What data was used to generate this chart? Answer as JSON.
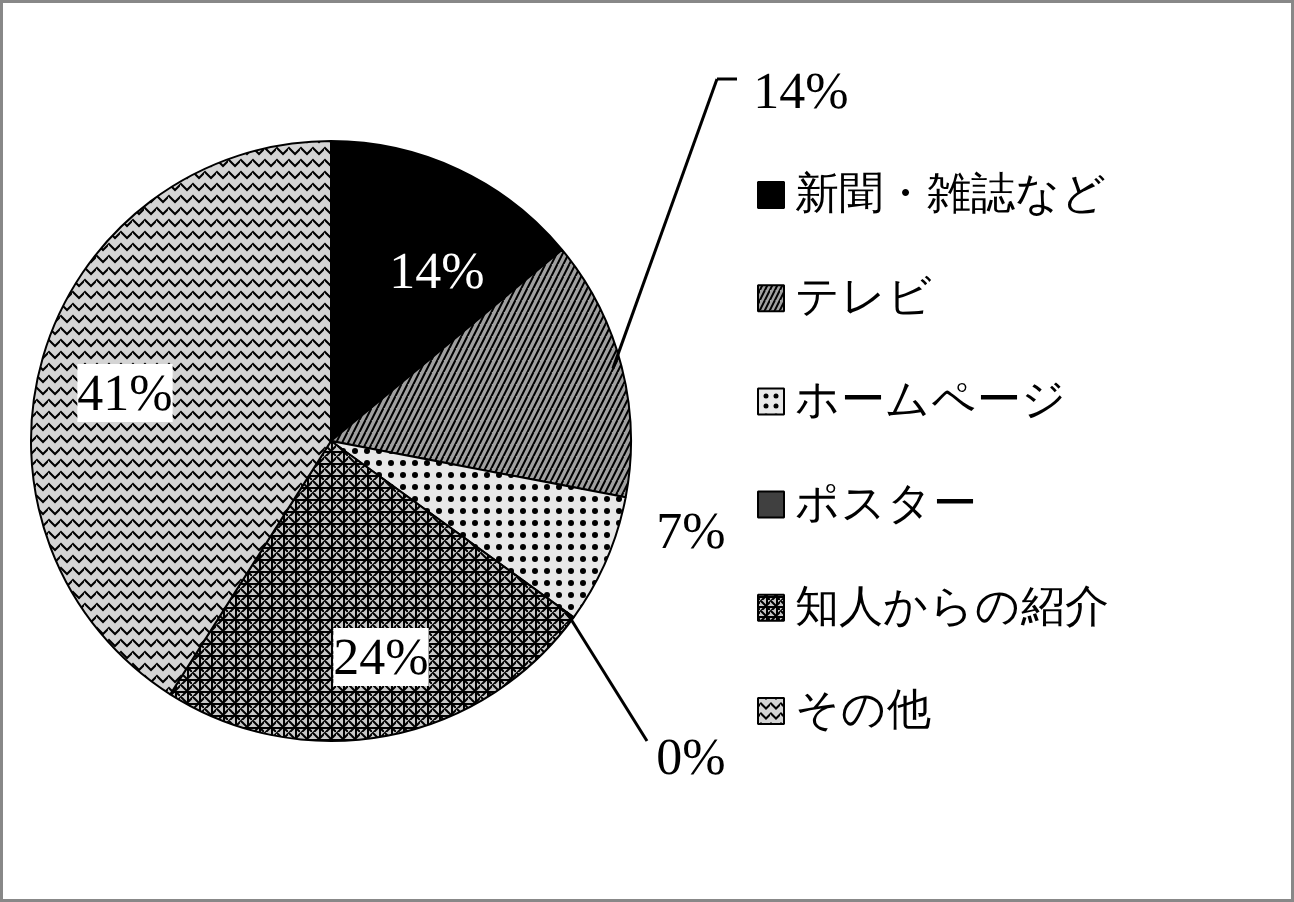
{
  "chart_data": {
    "type": "pie",
    "categories": [
      "新聞・雑誌など",
      "テレビ",
      "ホームページ",
      "ポスター",
      "知人からの紹介",
      "その他"
    ],
    "values": [
      14,
      14,
      7,
      0,
      24,
      41
    ],
    "value_labels": [
      "14%",
      "14%",
      "7%",
      "0%",
      "24%",
      "41%"
    ],
    "colors": [
      "#000000",
      "#a0a0a0",
      "#e8e8e8",
      "#404040",
      "#c8c8c8",
      "#d4d4d4"
    ],
    "legend": "right"
  }
}
